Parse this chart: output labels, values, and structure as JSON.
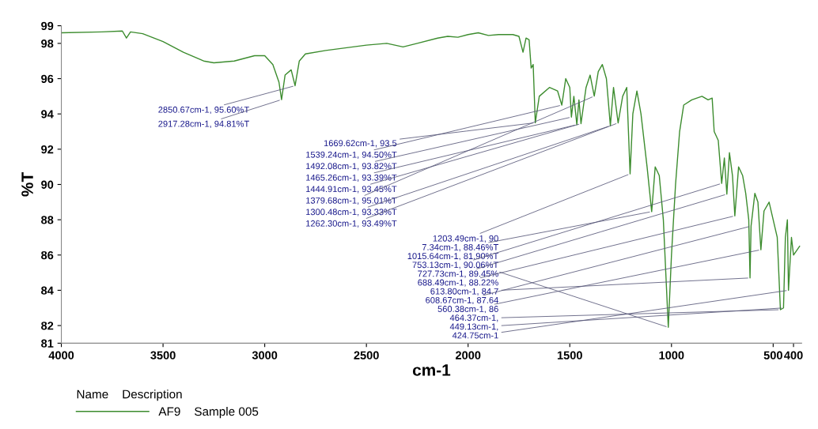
{
  "chart_data": {
    "type": "line",
    "xlabel": "cm-1",
    "ylabel": "%T",
    "legend_title": "Name    Description",
    "xlim": [
      4000,
      360
    ],
    "xticks": [
      4000,
      3500,
      3000,
      2500,
      2000,
      1500,
      1000,
      500,
      400
    ],
    "ylim": [
      81,
      99
    ],
    "yticks": [
      81,
      82,
      84,
      86,
      88,
      90,
      92,
      94,
      96,
      98,
      99
    ],
    "grid": false,
    "legend": "bottom left",
    "marker": "none",
    "line_style": "solid",
    "series": [
      {
        "name": "AF9    Sample 005",
        "color": "#3c8c2e",
        "x": [
          4000,
          3800,
          3700,
          3680,
          3660,
          3600,
          3500,
          3400,
          3300,
          3250,
          3150,
          3050,
          3000,
          2960,
          2930,
          2917.28,
          2900,
          2870,
          2850.67,
          2830,
          2800,
          2700,
          2500,
          2400,
          2320,
          2250,
          2150,
          2100,
          2050,
          2000,
          1950,
          1900,
          1850,
          1780,
          1750,
          1730,
          1715,
          1700,
          1690,
          1680,
          1669.62,
          1650,
          1600,
          1560,
          1539.24,
          1520,
          1500,
          1492.08,
          1480,
          1465.26,
          1455,
          1444.91,
          1420,
          1400,
          1379.68,
          1360,
          1340,
          1320,
          1300.48,
          1285,
          1262.3,
          1240,
          1220,
          1203.49,
          1190,
          1170,
          1150,
          1120,
          1097.34,
          1080,
          1060,
          1040,
          1015.64,
          1000,
          980,
          960,
          940,
          900,
          850,
          820,
          800,
          790,
          770,
          753.13,
          740,
          727.73,
          715,
          700,
          688.49,
          670,
          650,
          635,
          620,
          613.8,
          608.67,
          590,
          575,
          560.38,
          545,
          520,
          500,
          480,
          464.37,
          449.13,
          440,
          430,
          424.75,
          410,
          400,
          370
        ],
        "values": [
          98.6,
          98.65,
          98.7,
          98.3,
          98.65,
          98.55,
          98.1,
          97.5,
          97.0,
          96.9,
          97.0,
          97.3,
          97.3,
          96.8,
          95.8,
          94.81,
          96.2,
          96.5,
          95.6,
          97.0,
          97.4,
          97.6,
          97.9,
          98.0,
          97.8,
          98.0,
          98.3,
          98.4,
          98.35,
          98.5,
          98.6,
          98.45,
          98.5,
          98.5,
          98.4,
          97.5,
          98.3,
          98.2,
          96.6,
          96.8,
          93.5,
          95.0,
          95.5,
          95.3,
          94.5,
          96.0,
          95.5,
          93.82,
          95.0,
          93.39,
          94.8,
          93.45,
          95.5,
          96.2,
          95.01,
          96.4,
          96.8,
          96.0,
          93.33,
          95.5,
          93.49,
          95.0,
          95.5,
          90.6,
          94.0,
          95.3,
          94.0,
          91.0,
          88.46,
          91.0,
          90.5,
          88.0,
          81.9,
          86.0,
          90.0,
          93.0,
          94.5,
          94.8,
          95.0,
          94.8,
          94.9,
          93.0,
          92.5,
          90.06,
          91.5,
          89.45,
          91.8,
          90.5,
          88.22,
          91.0,
          90.5,
          89.5,
          88.0,
          84.7,
          87.64,
          89.5,
          89.0,
          86.3,
          88.5,
          89.0,
          88.0,
          87.0,
          82.9,
          83.0,
          87.0,
          88.0,
          84.0,
          87.0,
          86.0,
          86.5
        ]
      }
    ],
    "annotations": [
      {
        "text": "2850.67cm-1, 95.60%T",
        "x": 2850.67,
        "y": 95.6
      },
      {
        "text": "2917.28cm-1, 94.81%T",
        "x": 2917.28,
        "y": 94.81
      },
      {
        "text": "1539.24cm-1, 94.50%T",
        "x": 1539.24,
        "y": 94.5
      },
      {
        "text": "1300.48cm-1, 93.33%T",
        "x": 1300.48,
        "y": 93.33
      },
      {
        "text": "1465.26cm-1, 93.39%T",
        "x": 1465.26,
        "y": 93.39
      },
      {
        "text": "753.13cm-1, 90.06%T",
        "x": 753.13,
        "y": 90.06
      },
      {
        "text": "727.73cm-1, 89.45%",
        "x": 727.73,
        "y": 89.45
      },
      {
        "text": "1444.91cm-1, 93.45%T",
        "x": 1444.91,
        "y": 93.45
      },
      {
        "text": "1203.49cm-1, 90",
        "x": 1203.49,
        "y": 90.6
      },
      {
        "text": "688.49cm-1, 88.22%",
        "x": 688.49,
        "y": 88.22
      },
      {
        "text": "608.67cm-1, 87.64",
        "x": 608.67,
        "y": 87.64
      },
      {
        "text": "1262.30cm-1, 93.49%T",
        "x": 1262.3,
        "y": 93.49
      },
      {
        "text": "560.38cm-1, 86",
        "x": 560.38,
        "y": 86.3
      },
      {
        "text": "1669.62cm-1, 93.5",
        "x": 1669.62,
        "y": 93.5
      },
      {
        "text": "7.34cm-1, 88.46%T",
        "x": 1097.34,
        "y": 88.46
      },
      {
        "text": "1492.08cm-1, 93.82%T",
        "x": 1492.08,
        "y": 93.82
      },
      {
        "text": "1379.68cm-1, 95.01%T",
        "x": 1379.68,
        "y": 95.01
      },
      {
        "text": "613.80cm-1, 84.7",
        "x": 613.8,
        "y": 84.7
      },
      {
        "text": "449.13cm-1,",
        "x": 449.13,
        "y": 83.0
      },
      {
        "text": "464.37cm-1,",
        "x": 464.37,
        "y": 82.9
      },
      {
        "text": "1015.64cm-1, 81.90%T",
        "x": 1015.64,
        "y": 81.9
      },
      {
        "text": "424.75cm-1",
        "x": 424.75,
        "y": 84.0
      }
    ]
  }
}
